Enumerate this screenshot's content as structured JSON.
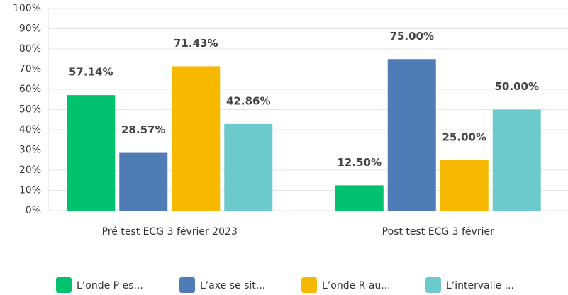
{
  "chart_data": {
    "type": "bar",
    "categories": [
      "Pré test ECG 3 février 2023",
      "Post test ECG 3 février"
    ],
    "series": [
      {
        "name": "L’onde P es...",
        "color": "#00c16e",
        "values": [
          57.14,
          12.5
        ],
        "value_labels": [
          "57.14%",
          "12.50%"
        ]
      },
      {
        "name": "L’axe se sit...",
        "color": "#4f7cb7",
        "values": [
          28.57,
          75
        ],
        "value_labels": [
          "28.57%",
          "75.00%"
        ]
      },
      {
        "name": "L’onde R au...",
        "color": "#f7b900",
        "values": [
          71.43,
          25
        ],
        "value_labels": [
          "71.43%",
          "25.00%"
        ]
      },
      {
        "name": "L’intervalle ...",
        "color": "#6ccacd",
        "values": [
          42.86,
          50
        ],
        "value_labels": [
          "42.86%",
          "50.00%"
        ]
      }
    ],
    "ylim": [
      0,
      100
    ],
    "yticks": [
      {
        "value": 0,
        "label": "0%"
      },
      {
        "value": 10,
        "label": "10%"
      },
      {
        "value": 20,
        "label": "20%"
      },
      {
        "value": 30,
        "label": "30%"
      },
      {
        "value": 40,
        "label": "40%"
      },
      {
        "value": 50,
        "label": "50%"
      },
      {
        "value": 60,
        "label": "60%"
      },
      {
        "value": 70,
        "label": "70%"
      },
      {
        "value": 80,
        "label": "80%"
      },
      {
        "value": 90,
        "label": "90%"
      },
      {
        "value": 100,
        "label": "100%"
      }
    ],
    "grid": true
  }
}
